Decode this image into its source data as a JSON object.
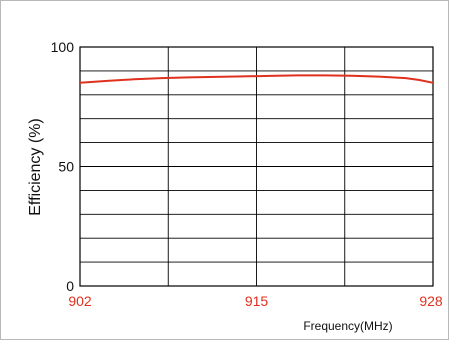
{
  "chart_data": {
    "type": "line",
    "title": "",
    "xlabel": "Frequency(MHz)",
    "ylabel": "Efficiency (%)",
    "xlim": [
      902,
      928
    ],
    "ylim": [
      0,
      100
    ],
    "x_ticks": [
      "902",
      "915",
      "928"
    ],
    "y_ticks": [
      "0",
      "50",
      "100"
    ],
    "grid": true,
    "series_color": "#e0301e",
    "series": [
      {
        "x": [
          902,
          904,
          906,
          908,
          910,
          912,
          914,
          916,
          918,
          920,
          922,
          924,
          926,
          927,
          928
        ],
        "values": [
          85,
          85.8,
          86.5,
          87,
          87.3,
          87.5,
          87.7,
          87.9,
          88.1,
          88.1,
          88,
          87.6,
          87,
          86.2,
          85
        ]
      }
    ]
  }
}
